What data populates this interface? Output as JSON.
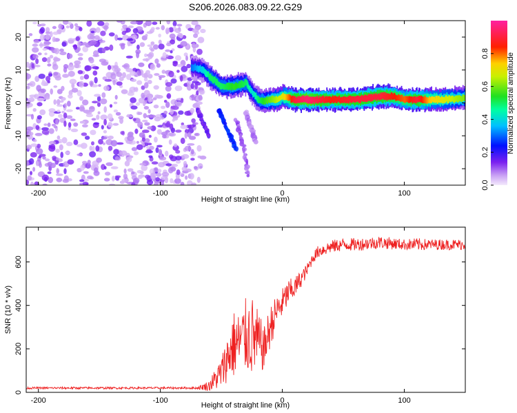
{
  "title": "S206.2026.083.09.22.G29",
  "colors": {
    "purple_dark": "#6a00e0",
    "purple_light": "#c8a0f0",
    "snr_line": "#ee2020",
    "frame": "#000000"
  },
  "chart_data": [
    {
      "type": "heatmap",
      "title": "S206.2026.083.09.22.G29",
      "xlabel": "Height of straight line (km)",
      "ylabel": "Frequency (Hz)",
      "xlim": [
        -210,
        150
      ],
      "ylim": [
        -25,
        25
      ],
      "xticks": [
        -200,
        -100,
        0,
        100
      ],
      "yticks": [
        -20,
        -10,
        0,
        10,
        20
      ],
      "colorbar": {
        "label": "Normalized spectral amplitude",
        "range": [
          0,
          1
        ],
        "ticks": [
          "0.0",
          "0.2",
          "0.4",
          "0.6",
          "0.8"
        ],
        "tick_values": [
          0.0,
          0.2,
          0.4,
          0.6,
          0.8
        ],
        "colormap": "rainbow (white/violet low → blue → cyan → green → yellow → red → magenta high)"
      },
      "noise_region": {
        "x_range": [
          -210,
          -65
        ],
        "frequency_range": [
          -25,
          25
        ],
        "amplitude": "low (0.0–0.1)"
      },
      "signal_ridge": {
        "x": [
          -75,
          -65,
          -60,
          -50,
          -40,
          -30,
          -25,
          -20,
          -15,
          -10,
          -5,
          0,
          10,
          20,
          40,
          60,
          80,
          90,
          100,
          110,
          120,
          130,
          150
        ],
        "frequency": [
          11,
          10,
          8,
          5,
          5,
          6,
          3,
          1,
          0.5,
          1,
          1,
          2,
          1,
          1,
          1,
          1,
          2,
          2,
          1,
          1,
          1,
          1,
          1.5
        ],
        "amplitude": [
          0.3,
          0.4,
          0.5,
          0.5,
          0.55,
          0.5,
          0.4,
          0.5,
          0.55,
          0.6,
          0.65,
          0.7,
          0.9,
          0.95,
          0.85,
          0.9,
          0.9,
          0.85,
          0.8,
          0.9,
          0.75,
          0.7,
          0.6
        ]
      },
      "branches": [
        {
          "x": [
            -70,
            -65,
            -60
          ],
          "frequency": [
            -2,
            -6,
            -10
          ],
          "amplitude": 0.15
        },
        {
          "x": [
            -52,
            -45,
            -38
          ],
          "frequency": [
            -2,
            -8,
            -14
          ],
          "amplitude": 0.25
        },
        {
          "x": [
            -38,
            -32,
            -28
          ],
          "frequency": [
            -5,
            -13,
            -22
          ],
          "amplitude": 0.1
        },
        {
          "x": [
            -30,
            -25,
            -22
          ],
          "frequency": [
            -3,
            -8,
            -12
          ],
          "amplitude": 0.08
        }
      ]
    },
    {
      "type": "line",
      "xlabel": "Height of straight line (km)",
      "ylabel": "SNR (10 * v/v)",
      "xlim": [
        -210,
        150
      ],
      "ylim": [
        0,
        760
      ],
      "xticks": [
        -200,
        -100,
        0,
        100
      ],
      "yticks": [
        0,
        200,
        400,
        600
      ],
      "series": [
        {
          "name": "SNR",
          "x": [
            -210,
            -150,
            -100,
            -70,
            -60,
            -50,
            -45,
            -40,
            -35,
            -30,
            -25,
            -20,
            -15,
            -10,
            -5,
            0,
            5,
            10,
            15,
            20,
            25,
            30,
            40,
            50,
            60,
            80,
            100,
            110,
            120,
            150
          ],
          "mean": [
            20,
            20,
            20,
            20,
            30,
            90,
            160,
            220,
            230,
            260,
            260,
            230,
            200,
            300,
            370,
            410,
            460,
            480,
            520,
            560,
            620,
            650,
            670,
            680,
            680,
            690,
            680,
            680,
            680,
            680
          ],
          "spread": [
            10,
            10,
            10,
            10,
            50,
            150,
            220,
            320,
            280,
            350,
            380,
            300,
            200,
            200,
            150,
            140,
            120,
            100,
            80,
            60,
            50,
            60,
            60,
            60,
            60,
            60,
            50,
            60,
            50,
            50
          ]
        }
      ]
    }
  ]
}
